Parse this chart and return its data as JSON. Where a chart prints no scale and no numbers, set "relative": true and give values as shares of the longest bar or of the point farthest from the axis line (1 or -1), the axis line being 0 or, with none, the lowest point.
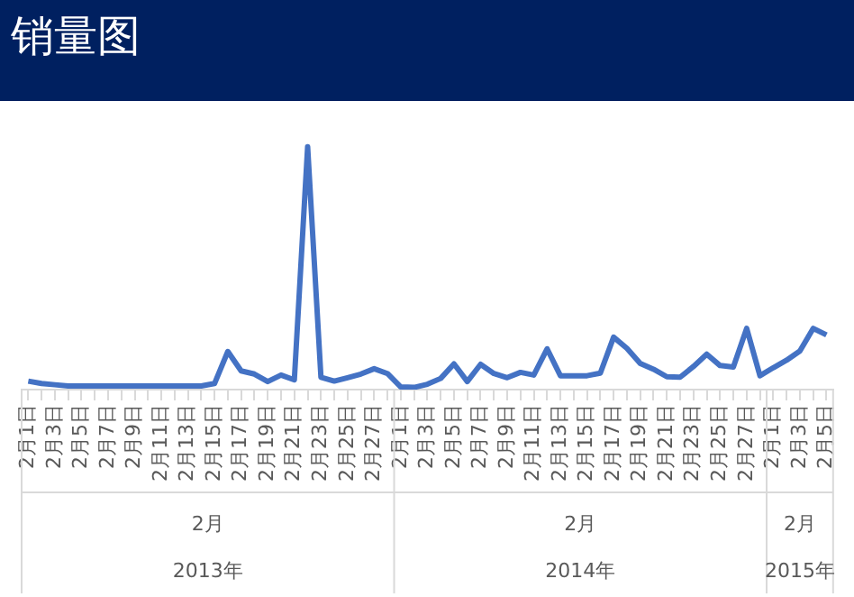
{
  "chart_data": {
    "type": "line",
    "title": "销量图",
    "relative": true,
    "marker": "none",
    "grid": false,
    "legend": false,
    "categories": [
      "2月1日",
      null,
      "2月3日",
      null,
      "2月5日",
      null,
      "2月7日",
      null,
      "2月9日",
      null,
      "2月11日",
      null,
      "2月13日",
      null,
      "2月15日",
      null,
      "2月17日",
      null,
      "2月19日",
      null,
      "2月21日",
      null,
      "2月23日",
      null,
      "2月25日",
      null,
      "2月27日",
      null,
      "2月1日",
      null,
      "2月3日",
      null,
      "2月5日",
      null,
      "2月7日",
      null,
      "2月9日",
      null,
      "2月11日",
      null,
      "2月13日",
      null,
      "2月15日",
      null,
      "2月17日",
      null,
      "2月19日",
      null,
      "2月21日",
      null,
      "2月23日",
      null,
      "2月25日",
      null,
      "2月27日",
      null,
      "2月1日",
      null,
      "2月3日",
      null,
      "2月5日"
    ],
    "series": [
      {
        "color": "#4472c4",
        "values": [
          0.035,
          0.025,
          0.02,
          0.015,
          0.015,
          0.015,
          0.015,
          0.015,
          0.015,
          0.015,
          0.015,
          0.015,
          0.015,
          0.015,
          0.025,
          0.157,
          0.077,
          0.064,
          0.033,
          0.06,
          0.04,
          1,
          0.051,
          0.035,
          0.049,
          0.064,
          0.086,
          0.066,
          0.011,
          0.009,
          0.022,
          0.046,
          0.106,
          0.033,
          0.104,
          0.066,
          0.049,
          0.071,
          0.06,
          0.168,
          0.057,
          0.057,
          0.057,
          0.068,
          0.216,
          0.17,
          0.108,
          0.084,
          0.053,
          0.051,
          0.095,
          0.146,
          0.099,
          0.093,
          0.252,
          0.057,
          0.09,
          0.121,
          0.159,
          0.252,
          0.225
        ]
      }
    ],
    "annotations": [
      "2月",
      "2013年",
      "2月",
      "2014年",
      "2月",
      "2015年"
    ]
  }
}
